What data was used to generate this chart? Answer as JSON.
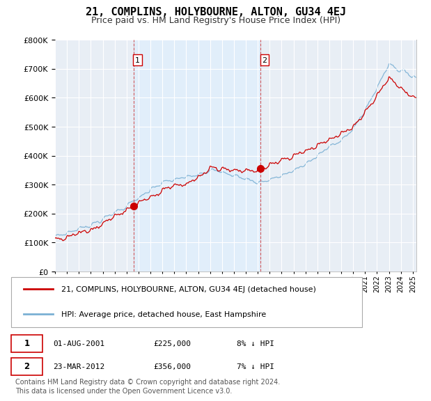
{
  "title": "21, COMPLINS, HOLYBOURNE, ALTON, GU34 4EJ",
  "subtitle": "Price paid vs. HM Land Registry's House Price Index (HPI)",
  "ylim": [
    0,
    800000
  ],
  "xlim_start": 1995.0,
  "xlim_end": 2025.3,
  "sale1_date": 2001.58,
  "sale1_label": "1",
  "sale1_price": 225000,
  "sale2_date": 2012.22,
  "sale2_label": "2",
  "sale2_price": 356000,
  "legend_line1": "21, COMPLINS, HOLYBOURNE, ALTON, GU34 4EJ (detached house)",
  "legend_line2": "HPI: Average price, detached house, East Hampshire",
  "table_row1": [
    "1",
    "01-AUG-2001",
    "£225,000",
    "8% ↓ HPI"
  ],
  "table_row2": [
    "2",
    "23-MAR-2012",
    "£356,000",
    "7% ↓ HPI"
  ],
  "footer": "Contains HM Land Registry data © Crown copyright and database right 2024.\nThis data is licensed under the Open Government Licence v3.0.",
  "color_red": "#cc0000",
  "color_blue": "#7ab0d4",
  "color_dashed": "#cc3333",
  "color_shade": "#ddeeff",
  "bg_color": "#ffffff",
  "plot_bg": "#e8eef5",
  "grid_color": "#ffffff",
  "title_fontsize": 11,
  "subtitle_fontsize": 9,
  "tick_fontsize": 8,
  "legend_fontsize": 8,
  "footer_fontsize": 7
}
